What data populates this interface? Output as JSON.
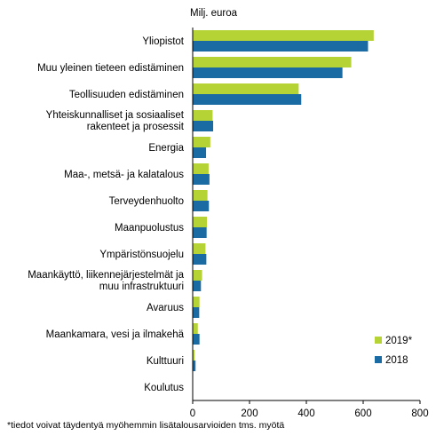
{
  "chart_data": {
    "type": "bar",
    "orientation": "horizontal",
    "unit_label": "Milj. euroa",
    "footnote": "*tiedot voivat täydentyä myöhemmin lisätalousarvioiden tms. myötä",
    "categories": [
      [
        "Yliopistot"
      ],
      [
        "Muu yleinen tieteen edistäminen"
      ],
      [
        "Teollisuuden edistäminen"
      ],
      [
        "Yhteiskunnalliset ja sosiaaliset",
        "rakenteet ja prosessit"
      ],
      [
        "Energia"
      ],
      [
        "Maa-, metsä- ja kalatalous"
      ],
      [
        "Terveydenhuolto"
      ],
      [
        "Maanpuolustus"
      ],
      [
        "Ympäristönsuojelu"
      ],
      [
        "Maankäyttö, liikennejärjestelmät ja",
        "muu infrastruktuuri"
      ],
      [
        "Avaruus"
      ],
      [
        "Maankamara, vesi ja ilmakehä"
      ],
      [
        "Kulttuuri"
      ],
      [
        "Koulutus"
      ]
    ],
    "series": [
      {
        "name": "2019*",
        "color": "#b5d334",
        "values": [
          637,
          558,
          373,
          70,
          62,
          56,
          52,
          50,
          45,
          33,
          24,
          18,
          7,
          1
        ]
      },
      {
        "name": "2018",
        "color": "#1a6aa3",
        "values": [
          617,
          527,
          382,
          72,
          47,
          59,
          57,
          49,
          48,
          29,
          23,
          24,
          10,
          1
        ]
      }
    ],
    "xlim": [
      0,
      800
    ],
    "xticks": [
      0,
      200,
      400,
      600,
      800
    ],
    "legend_position": "bottom-right",
    "legend_order": [
      "2019*",
      "2018"
    ],
    "grid": false
  }
}
